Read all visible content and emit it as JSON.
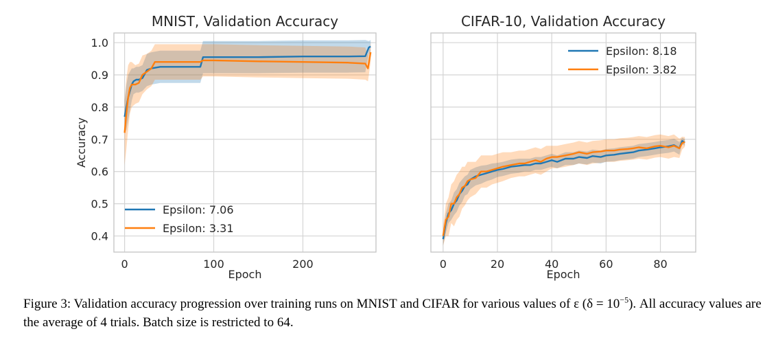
{
  "chart_data": [
    {
      "type": "line",
      "title": "MNIST, Validation Accuracy",
      "xlabel": "Epoch",
      "ylabel": "Accuracy",
      "xlim": [
        -12,
        282
      ],
      "ylim": [
        0.35,
        1.03
      ],
      "xticks": [
        0,
        100,
        200
      ],
      "yticks": [
        0.4,
        0.5,
        0.6,
        0.7,
        0.8,
        0.9,
        1.0
      ],
      "grid": true,
      "legend": "lower-left",
      "series": [
        {
          "name": "Epsilon: 7.06",
          "color": "#1f77b4",
          "x": [
            0,
            2,
            4,
            6,
            8,
            10,
            13,
            16,
            20,
            25,
            30,
            40,
            60,
            85,
            88,
            100,
            150,
            200,
            250,
            270,
            274,
            276
          ],
          "y": [
            0.77,
            0.8,
            0.83,
            0.85,
            0.87,
            0.88,
            0.885,
            0.885,
            0.89,
            0.915,
            0.92,
            0.925,
            0.925,
            0.925,
            0.955,
            0.955,
            0.955,
            0.957,
            0.957,
            0.958,
            0.985,
            0.988
          ],
          "band": [
            0.05,
            0.07,
            0.07,
            0.06,
            0.05,
            0.04,
            0.04,
            0.04,
            0.04,
            0.05,
            0.05,
            0.05,
            0.05,
            0.05,
            0.05,
            0.05,
            0.05,
            0.05,
            0.05,
            0.05,
            0.02,
            0.02
          ]
        },
        {
          "name": "Epsilon: 3.31",
          "color": "#ff7f0e",
          "x": [
            0,
            2,
            4,
            6,
            8,
            12,
            16,
            20,
            25,
            30,
            34,
            40,
            60,
            85,
            88,
            100,
            150,
            200,
            250,
            270,
            273,
            276
          ],
          "y": [
            0.72,
            0.78,
            0.83,
            0.86,
            0.87,
            0.87,
            0.875,
            0.9,
            0.91,
            0.92,
            0.94,
            0.94,
            0.94,
            0.94,
            0.945,
            0.945,
            0.942,
            0.94,
            0.938,
            0.935,
            0.92,
            0.97
          ],
          "band": [
            0.1,
            0.11,
            0.1,
            0.08,
            0.07,
            0.06,
            0.06,
            0.06,
            0.055,
            0.055,
            0.055,
            0.055,
            0.055,
            0.055,
            0.05,
            0.05,
            0.05,
            0.05,
            0.05,
            0.05,
            0.04,
            0.03
          ]
        }
      ]
    },
    {
      "type": "line",
      "title": "CIFAR-10, Validation Accuracy",
      "xlabel": "Epoch",
      "ylabel": "",
      "xlim": [
        -4.5,
        93
      ],
      "ylim": [
        0.35,
        1.03
      ],
      "xticks": [
        0,
        20,
        40,
        60,
        80
      ],
      "yticks": [],
      "grid": true,
      "legend": "upper-right",
      "series": [
        {
          "name": "Epsilon: 8.18",
          "color": "#1f77b4",
          "x": [
            0,
            1,
            2,
            3,
            4,
            5,
            6,
            7,
            8,
            9,
            10,
            12,
            14,
            16,
            18,
            20,
            22,
            25,
            28,
            30,
            32,
            34,
            36,
            38,
            40,
            42,
            45,
            48,
            50,
            53,
            55,
            58,
            60,
            63,
            65,
            68,
            70,
            72,
            75,
            78,
            80,
            83,
            85,
            87,
            88,
            89
          ],
          "y": [
            0.39,
            0.44,
            0.47,
            0.48,
            0.5,
            0.51,
            0.53,
            0.54,
            0.555,
            0.56,
            0.575,
            0.585,
            0.59,
            0.595,
            0.6,
            0.605,
            0.608,
            0.615,
            0.618,
            0.62,
            0.62,
            0.625,
            0.625,
            0.63,
            0.635,
            0.63,
            0.64,
            0.64,
            0.645,
            0.642,
            0.648,
            0.645,
            0.65,
            0.652,
            0.655,
            0.658,
            0.66,
            0.665,
            0.668,
            0.672,
            0.675,
            0.678,
            0.682,
            0.672,
            0.695,
            0.69
          ],
          "band": [
            0.02,
            0.03,
            0.03,
            0.03,
            0.035,
            0.035,
            0.035,
            0.035,
            0.03,
            0.03,
            0.03,
            0.028,
            0.028,
            0.025,
            0.025,
            0.022,
            0.022,
            0.022,
            0.022,
            0.02,
            0.02,
            0.02,
            0.02,
            0.02,
            0.02,
            0.02,
            0.02,
            0.02,
            0.02,
            0.02,
            0.02,
            0.02,
            0.02,
            0.02,
            0.02,
            0.02,
            0.02,
            0.02,
            0.02,
            0.02,
            0.02,
            0.02,
            0.02,
            0.02,
            0.01,
            0.01
          ]
        },
        {
          "name": "Epsilon: 3.82",
          "color": "#ff7f0e",
          "x": [
            0,
            1,
            2,
            3,
            4,
            5,
            6,
            7,
            8,
            9,
            10,
            12,
            14,
            16,
            18,
            20,
            22,
            25,
            28,
            30,
            32,
            34,
            36,
            38,
            40,
            42,
            45,
            48,
            50,
            53,
            55,
            58,
            60,
            63,
            65,
            68,
            70,
            72,
            75,
            78,
            80,
            83,
            85,
            87,
            88,
            89
          ],
          "y": [
            0.4,
            0.45,
            0.46,
            0.5,
            0.5,
            0.52,
            0.53,
            0.55,
            0.555,
            0.57,
            0.575,
            0.58,
            0.6,
            0.6,
            0.605,
            0.61,
            0.615,
            0.62,
            0.625,
            0.625,
            0.63,
            0.635,
            0.63,
            0.64,
            0.645,
            0.645,
            0.65,
            0.655,
            0.66,
            0.655,
            0.66,
            0.662,
            0.665,
            0.665,
            0.668,
            0.67,
            0.672,
            0.675,
            0.672,
            0.678,
            0.68,
            0.675,
            0.68,
            0.672,
            0.688,
            0.692
          ],
          "band": [
            0.03,
            0.05,
            0.06,
            0.06,
            0.07,
            0.07,
            0.07,
            0.065,
            0.06,
            0.06,
            0.055,
            0.05,
            0.05,
            0.05,
            0.045,
            0.045,
            0.045,
            0.04,
            0.04,
            0.04,
            0.04,
            0.04,
            0.04,
            0.04,
            0.035,
            0.035,
            0.035,
            0.035,
            0.035,
            0.035,
            0.035,
            0.035,
            0.035,
            0.035,
            0.035,
            0.035,
            0.035,
            0.035,
            0.035,
            0.035,
            0.035,
            0.035,
            0.035,
            0.03,
            0.02,
            0.015
          ]
        }
      ]
    }
  ],
  "caption": {
    "text_before": "Figure 3: Validation accuracy progression over training runs on MNIST and CIFAR for various values of ε (δ = 10",
    "superscript": "−5",
    "text_after": "). All accuracy values are the average of 4 trials. Batch size is restricted to 64."
  }
}
